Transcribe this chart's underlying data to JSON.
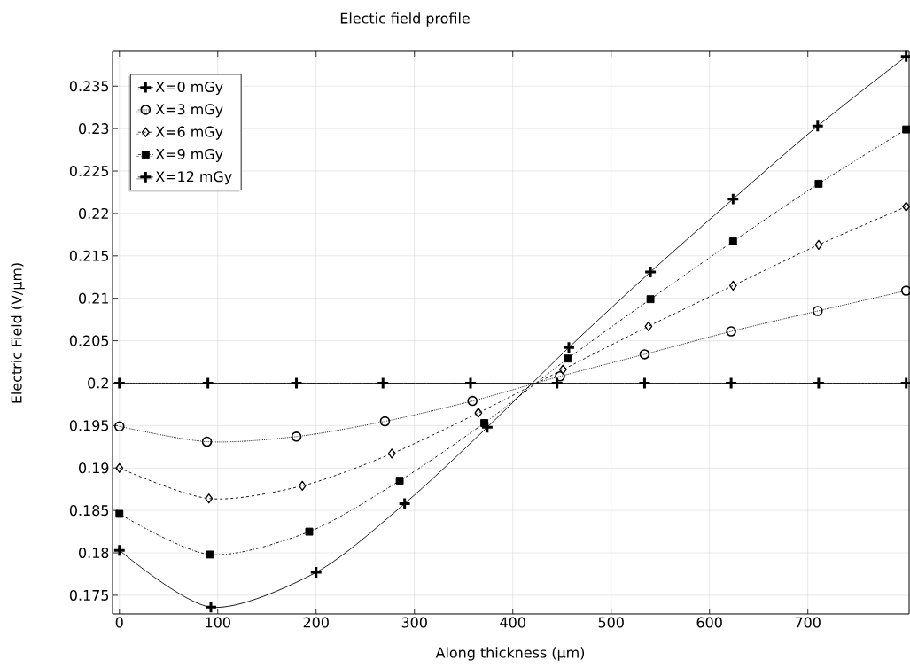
{
  "chart_data": {
    "type": "line",
    "title": "Electic field profile",
    "xlabel": "Along thickness (µm)",
    "ylabel": "Electric Field (V/µm)",
    "xlim": [
      -7,
      803
    ],
    "ylim": [
      0.1728,
      0.2391
    ],
    "xticks": [
      0,
      100,
      200,
      300,
      400,
      500,
      600,
      700
    ],
    "yticks": [
      0.175,
      0.18,
      0.185,
      0.19,
      0.195,
      0.2,
      0.205,
      0.21,
      0.215,
      0.22,
      0.225,
      0.23,
      0.235
    ],
    "grid": true,
    "legend": "top left",
    "series": [
      {
        "name": "X=0 mGy",
        "color": "#000000",
        "marker": "cross",
        "line_style": "solid",
        "x": [
          0,
          90,
          180,
          268,
          357,
          445,
          534,
          622,
          711,
          800
        ],
        "values": [
          0.2,
          0.2,
          0.2,
          0.2,
          0.2,
          0.2,
          0.2,
          0.2,
          0.2,
          0.2
        ]
      },
      {
        "name": "X=3 mGy",
        "color": "#000000",
        "marker": "circle",
        "line_style": "dotted",
        "x": [
          0,
          89,
          180,
          270,
          359,
          448,
          534,
          622,
          710,
          800
        ],
        "values": [
          0.1949,
          0.1931,
          0.1937,
          0.1955,
          0.1979,
          0.2008,
          0.2034,
          0.2061,
          0.2085,
          0.2109
        ]
      },
      {
        "name": "X=6 mGy",
        "color": "#000000",
        "marker": "diamond",
        "line_style": "dashed",
        "x": [
          0,
          91,
          186,
          277,
          365,
          451,
          538,
          624,
          711,
          800
        ],
        "values": [
          0.19,
          0.1864,
          0.1879,
          0.1917,
          0.1965,
          0.2016,
          0.2067,
          0.2115,
          0.2163,
          0.2208
        ]
      },
      {
        "name": "X=9 mGy",
        "color": "#000000",
        "marker": "square",
        "line_style": "dashdot",
        "x": [
          0,
          92,
          193,
          285,
          371,
          456,
          540,
          624,
          711,
          800
        ],
        "values": [
          0.1846,
          0.1798,
          0.1825,
          0.1885,
          0.1953,
          0.2029,
          0.2099,
          0.2167,
          0.2235,
          0.2299
        ]
      },
      {
        "name": "X=12 mGy",
        "color": "#000000",
        "marker": "cross",
        "line_style": "solid",
        "x": [
          0,
          93,
          200,
          290,
          374,
          457,
          540,
          624,
          710,
          800
        ],
        "values": [
          0.1803,
          0.1736,
          0.1777,
          0.1858,
          0.1948,
          0.2042,
          0.2131,
          0.2217,
          0.2303,
          0.2385
        ]
      }
    ]
  }
}
